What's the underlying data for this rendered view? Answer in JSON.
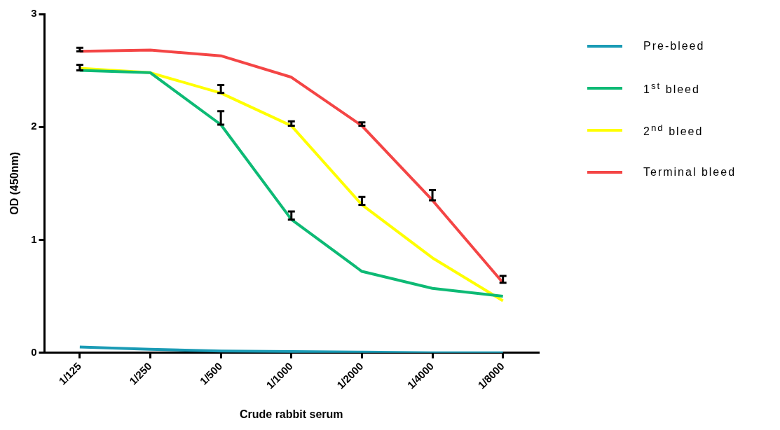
{
  "chart_data": {
    "type": "line",
    "xlabel": "Crude rabbit serum",
    "ylabel": "OD (450nm)",
    "categories": [
      "1/125",
      "1/250",
      "1/500",
      "1/1000",
      "1/2000",
      "1/4000",
      "1/8000"
    ],
    "series": [
      {
        "name": "Pre-bleed",
        "color": "#1a9bb5",
        "values": [
          0.05,
          0.03,
          0.015,
          0.01,
          0.005,
          0,
          0
        ]
      },
      {
        "name": "1$^{st}$ bleed",
        "color": "#0dba75",
        "values": [
          2.5,
          2.48,
          2.02,
          1.18,
          0.72,
          0.57,
          0.5
        ],
        "errors": [
          [
            2.5,
            2.55
          ],
          null,
          [
            2.02,
            2.14
          ],
          [
            1.18,
            1.25
          ],
          null,
          null,
          null
        ]
      },
      {
        "name": "2$^{nd}$ bleed",
        "color": "#ffff00",
        "values": [
          2.52,
          2.48,
          2.3,
          2.01,
          1.31,
          0.84,
          0.46
        ],
        "errors": [
          null,
          null,
          [
            2.3,
            2.37
          ],
          [
            2.01,
            2.05
          ],
          [
            1.31,
            1.38
          ],
          null,
          null
        ]
      },
      {
        "name": "Terminal bleed",
        "color": "#f44545",
        "values": [
          2.67,
          2.68,
          2.63,
          2.44,
          2.01,
          1.35,
          0.62
        ],
        "errors": [
          [
            2.67,
            2.7
          ],
          null,
          null,
          null,
          [
            2.01,
            2.04
          ],
          [
            1.35,
            1.44
          ],
          [
            0.62,
            0.68
          ]
        ]
      }
    ],
    "ylim": [
      0,
      3
    ],
    "yticks": [
      0,
      1,
      2,
      3
    ],
    "grid": false,
    "legend": "right",
    "marker": "none",
    "line_style": "solid"
  }
}
